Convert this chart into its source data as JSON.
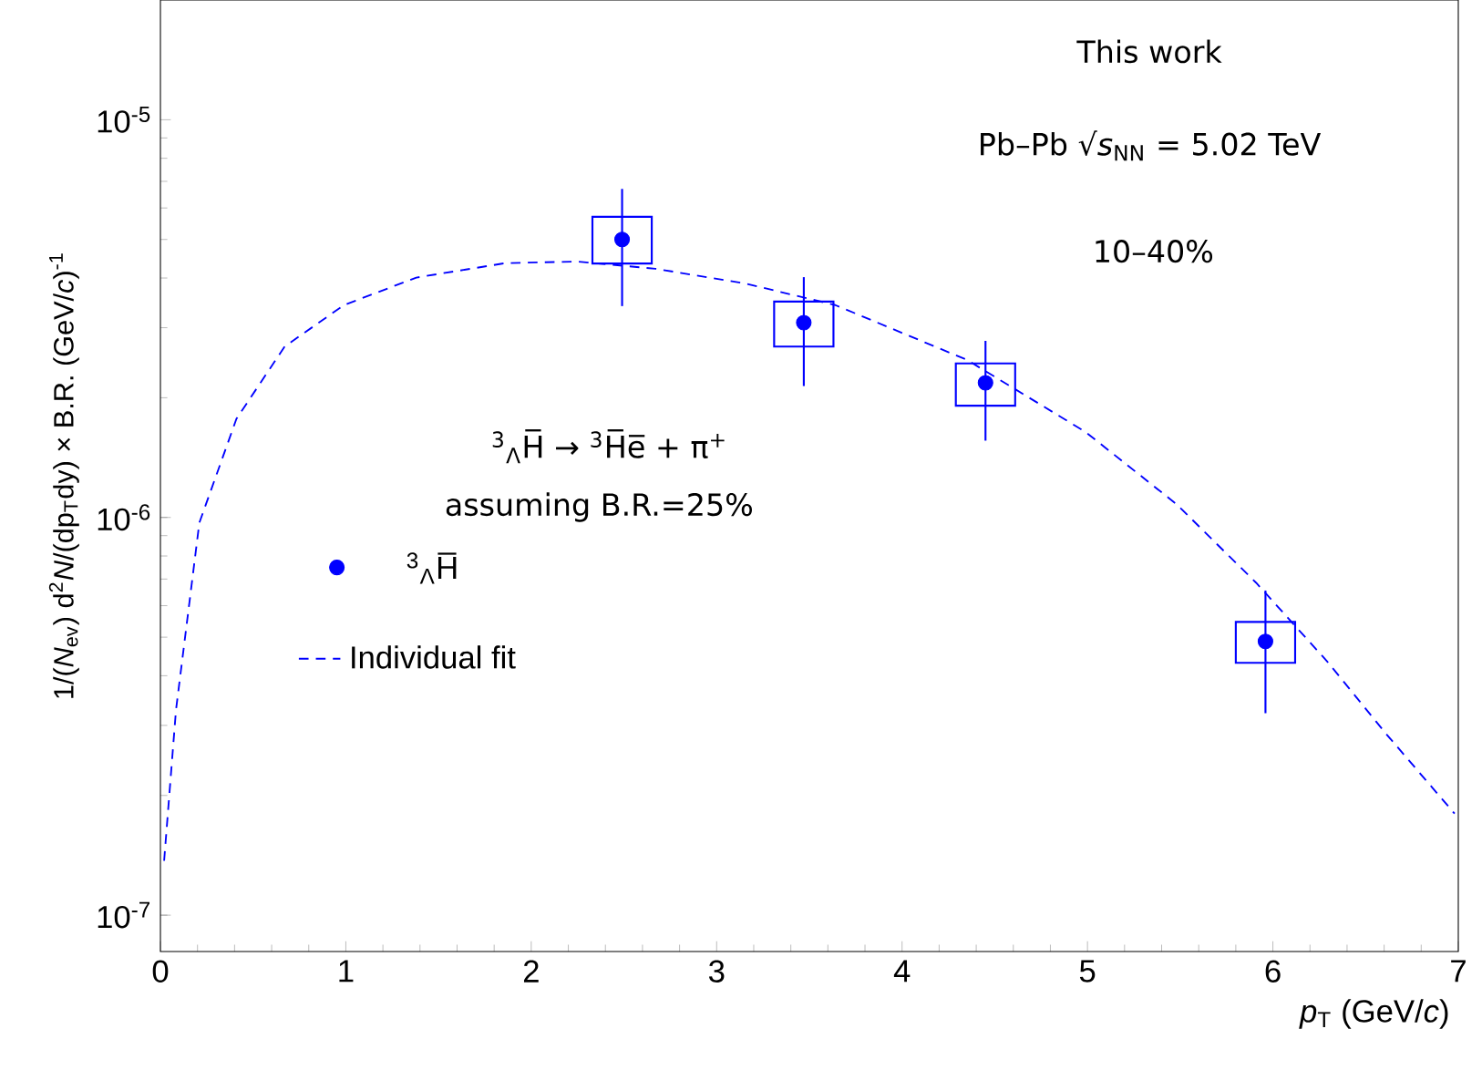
{
  "chart_data": {
    "type": "scatter",
    "xlabel": "*p*$_{T}$ (GeV/*c*)",
    "ylabel": "1/(*N*$_{ev}$) d$^{2}$*N*/(dp$_{T}$dy) × B.R. (GeV/*c*)$^{-1}$",
    "annotations": [
      "This work",
      "Pb–Pb √*s*$_{NN}$ = 5.02 TeV",
      "10–40%",
      "$^{3}$$_{Λ}$H̅ → $^{3}$H̅e̅ + π$^{+}$",
      "assuming B.R.=25%"
    ],
    "series": [
      {
        "name": "$^{3}$$_{Λ}$H̅",
        "color": "#0000ff",
        "marker": "circle",
        "x": [
          2.49,
          3.47,
          4.45,
          5.96
        ],
        "values": [
          5e-06,
          3.09e-06,
          2.18e-06,
          4.88e-07
        ],
        "errors": [
          [
            3.4e-06,
            6.7e-06
          ],
          [
            2.14e-06,
            4.02e-06
          ],
          [
            1.56e-06,
            2.78e-06
          ],
          [
            3.22e-07,
            6.55e-07
          ]
        ]
      },
      {
        "type": "bar",
        "color": "#0000ff",
        "x": [
          2.49,
          3.47,
          4.45,
          5.96
        ],
        "base": [
          4.35e-06,
          2.69e-06,
          1.91e-06,
          4.31e-07
        ],
        "values": [
          1.35e-06,
          8e-07,
          5.3e-07,
          1.15e-07
        ]
      },
      {
        "type": "line",
        "name": "Individual fit",
        "color": "#0000ff",
        "line_style": "dashed",
        "marker": "none",
        "x": [
          0.02,
          0.084,
          0.21,
          0.41,
          0.67,
          0.99,
          1.38,
          1.86,
          2.25,
          2.67,
          3.15,
          3.64,
          4.35,
          4.99,
          5.48,
          5.91,
          6.29,
          6.61,
          6.98
        ],
        "values": [
          1.37e-07,
          3.28e-07,
          9.7e-07,
          1.77e-06,
          2.69e-06,
          3.42e-06,
          4.01e-06,
          4.36e-06,
          4.4e-06,
          4.22e-06,
          3.88e-06,
          3.42e-06,
          2.49e-06,
          1.64e-06,
          1.08e-06,
          6.85e-07,
          4.36e-07,
          2.86e-07,
          1.8e-07
        ]
      }
    ],
    "xlim": [
      0,
      7
    ],
    "ylim": [
      8.1e-08,
      2e-05
    ],
    "xticks": [
      0,
      1,
      2,
      3,
      4,
      5,
      6,
      7
    ],
    "yticks": [
      {
        "value": 1e-07,
        "label": "10$^{-7}$"
      },
      {
        "value": 1e-06,
        "label": "10$^{-6}$"
      },
      {
        "value": 1e-05,
        "label": "10$^{-5}$"
      }
    ],
    "log": "y",
    "legend": "left"
  }
}
